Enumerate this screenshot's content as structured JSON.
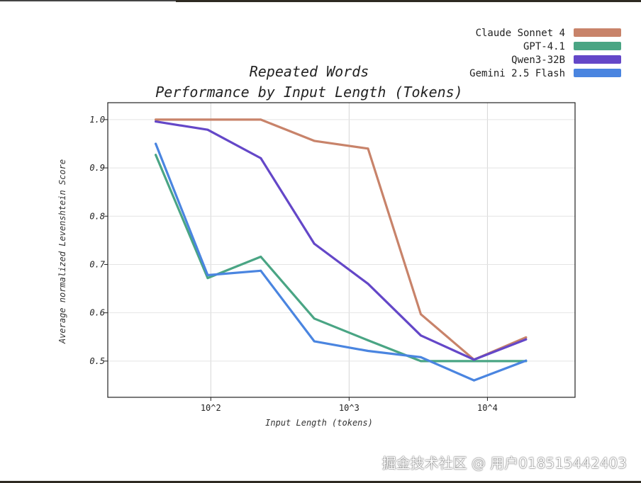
{
  "chart_data": {
    "type": "line",
    "title_lines": [
      "Repeated Words",
      "Performance by Input Length (Tokens)"
    ],
    "xlabel": "Input Length (tokens)",
    "ylabel": "Average normalized Levenshtein Score",
    "x_scale": "log",
    "x_ticks": [
      {
        "value": 100,
        "label": "10^2"
      },
      {
        "value": 1000,
        "label": "10^3"
      },
      {
        "value": 10000,
        "label": "10^4"
      }
    ],
    "y_ticks": [
      {
        "value": 0.5,
        "label": "0.5"
      },
      {
        "value": 0.6,
        "label": "0.6"
      },
      {
        "value": 0.7,
        "label": "0.7"
      },
      {
        "value": 0.8,
        "label": "0.8"
      },
      {
        "value": 0.9,
        "label": "0.9"
      },
      {
        "value": 1.0,
        "label": "1.0"
      }
    ],
    "xlim": [
      18,
      43000
    ],
    "ylim": [
      0.425,
      1.035
    ],
    "grid": true,
    "legend_position": "top-right",
    "series": [
      {
        "name": "Claude Sonnet 4",
        "color": "#c8836a",
        "points": [
          [
            40,
            1.0
          ],
          [
            230,
            1.0
          ],
          [
            560,
            0.956
          ],
          [
            1370,
            0.94
          ],
          [
            3300,
            0.597
          ],
          [
            8000,
            0.503
          ],
          [
            19000,
            0.549
          ]
        ]
      },
      {
        "name": "GPT-4.1",
        "color": "#4aa584",
        "points": [
          [
            40,
            0.927
          ],
          [
            95,
            0.672
          ],
          [
            230,
            0.716
          ],
          [
            560,
            0.588
          ],
          [
            1370,
            0.543
          ],
          [
            3300,
            0.5
          ],
          [
            8000,
            0.5
          ],
          [
            19000,
            0.5
          ]
        ]
      },
      {
        "name": "Qwen3-32B",
        "color": "#6447c8",
        "points": [
          [
            40,
            0.996
          ],
          [
            95,
            0.979
          ],
          [
            230,
            0.92
          ],
          [
            560,
            0.743
          ],
          [
            1370,
            0.66
          ],
          [
            3300,
            0.553
          ],
          [
            8000,
            0.503
          ],
          [
            19000,
            0.545
          ]
        ]
      },
      {
        "name": "Gemini 2.5 Flash",
        "color": "#4a85e0",
        "points": [
          [
            40,
            0.95
          ],
          [
            95,
            0.678
          ],
          [
            230,
            0.687
          ],
          [
            560,
            0.541
          ],
          [
            1370,
            0.521
          ],
          [
            3300,
            0.508
          ],
          [
            8000,
            0.46
          ],
          [
            19000,
            0.501
          ]
        ]
      }
    ]
  },
  "watermark": "掘金技术社区 @ 用户018515442403"
}
